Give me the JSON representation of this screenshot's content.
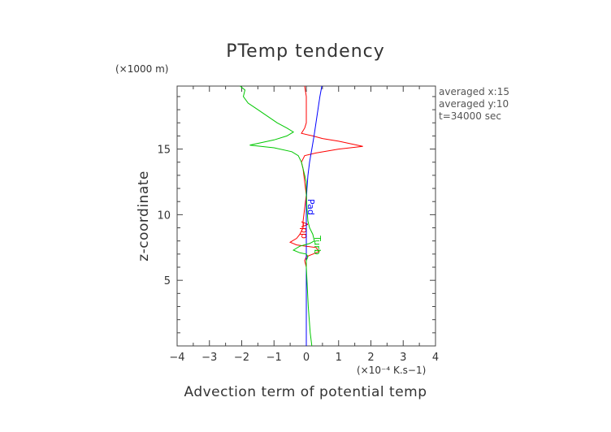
{
  "chart_data": {
    "type": "line",
    "title": "PTemp tendency",
    "xlabel": "Advection term of potential temp",
    "ylabel": "z-coordinate",
    "x_unit": "(×10⁻⁴ K.s−1)",
    "y_unit": "(×1000 m)",
    "xlim": [
      -4,
      4
    ],
    "ylim": [
      0,
      19.8
    ],
    "x_ticks": [
      -4,
      -3,
      -2,
      -1,
      0,
      1,
      2,
      3,
      4
    ],
    "x_tick_labels": [
      "−4",
      "−3",
      "−2",
      "−1",
      "0",
      "1",
      "2",
      "3",
      "4"
    ],
    "y_ticks": [
      5,
      10,
      15
    ],
    "y_tick_labels": [
      "5",
      "10",
      "15"
    ],
    "info_lines": [
      "averaged  x:15",
      "averaged  y:10",
      "t=34000 sec"
    ],
    "colors": {
      "App": "#ff0000",
      "Pad": "#0000ff",
      "Turb": "#00c800",
      "frame": "#444444"
    },
    "series": [
      {
        "name": "App",
        "color": "#ff0000",
        "label": "App",
        "label_at": [
          -0.15,
          9.5
        ],
        "points": [
          [
            -0.05,
            19.8
          ],
          [
            0,
            19.0
          ],
          [
            0,
            18.0
          ],
          [
            0,
            17.0
          ],
          [
            -0.05,
            16.6
          ],
          [
            -0.15,
            16.2
          ],
          [
            0.2,
            16.0
          ],
          [
            0.5,
            15.8
          ],
          [
            1.0,
            15.6
          ],
          [
            1.75,
            15.2
          ],
          [
            1.0,
            15.0
          ],
          [
            0.3,
            14.7
          ],
          [
            -0.05,
            14.5
          ],
          [
            -0.15,
            14.0
          ],
          [
            -0.1,
            13.5
          ],
          [
            -0.05,
            12.5
          ],
          [
            0,
            11.5
          ],
          [
            -0.05,
            10.5
          ],
          [
            -0.1,
            9.5
          ],
          [
            -0.1,
            9.0
          ],
          [
            -0.2,
            8.5
          ],
          [
            -0.3,
            8.2
          ],
          [
            -0.5,
            7.9
          ],
          [
            -0.3,
            7.7
          ],
          [
            0,
            7.6
          ],
          [
            0.3,
            7.5
          ],
          [
            0.4,
            7.2
          ],
          [
            0.2,
            7.0
          ],
          [
            0,
            6.8
          ],
          [
            -0.05,
            6.5
          ],
          [
            0,
            6.0
          ],
          [
            0,
            5.0
          ],
          [
            0,
            4.0
          ],
          [
            0,
            3.0
          ],
          [
            0,
            2.0
          ],
          [
            0,
            1.0
          ],
          [
            0,
            0
          ]
        ]
      },
      {
        "name": "Pad",
        "color": "#0000ff",
        "label": "Pad",
        "label_at": [
          0.05,
          11.2
        ],
        "points": [
          [
            0.48,
            19.8
          ],
          [
            0.42,
            19.0
          ],
          [
            0.36,
            18.0
          ],
          [
            0.3,
            17.0
          ],
          [
            0.24,
            16.0
          ],
          [
            0.17,
            15.0
          ],
          [
            0.1,
            14.0
          ],
          [
            0.05,
            13.0
          ],
          [
            0.02,
            12.0
          ],
          [
            0,
            11.0
          ],
          [
            0,
            10.0
          ],
          [
            0,
            9.0
          ],
          [
            0,
            8.0
          ],
          [
            0,
            7.0
          ],
          [
            0,
            6.0
          ],
          [
            0,
            5.0
          ],
          [
            0,
            4.0
          ],
          [
            0,
            3.0
          ],
          [
            0,
            2.0
          ],
          [
            0,
            1.0
          ],
          [
            0,
            0
          ]
        ]
      },
      {
        "name": "Turb",
        "color": "#00c800",
        "label": "Turb",
        "label_at": [
          0.25,
          8.4
        ],
        "points": [
          [
            -2.05,
            19.8
          ],
          [
            -1.9,
            19.5
          ],
          [
            -1.95,
            19.0
          ],
          [
            -1.8,
            18.5
          ],
          [
            -1.5,
            18.0
          ],
          [
            -1.2,
            17.5
          ],
          [
            -0.9,
            17.0
          ],
          [
            -0.6,
            16.6
          ],
          [
            -0.4,
            16.3
          ],
          [
            -0.6,
            16.0
          ],
          [
            -1.0,
            15.7
          ],
          [
            -1.75,
            15.3
          ],
          [
            -1.0,
            15.1
          ],
          [
            -0.45,
            14.8
          ],
          [
            -0.25,
            14.5
          ],
          [
            -0.15,
            14.0
          ],
          [
            -0.1,
            13.5
          ],
          [
            -0.05,
            13.0
          ],
          [
            0,
            12.5
          ],
          [
            0,
            11.5
          ],
          [
            0.02,
            10.5
          ],
          [
            0.05,
            9.5
          ],
          [
            0.1,
            9.0
          ],
          [
            0.2,
            8.5
          ],
          [
            0.25,
            8.0
          ],
          [
            0.1,
            7.8
          ],
          [
            -0.2,
            7.6
          ],
          [
            -0.4,
            7.3
          ],
          [
            -0.2,
            7.1
          ],
          [
            0,
            7.0
          ],
          [
            0.05,
            6.8
          ],
          [
            0,
            6.5
          ],
          [
            0,
            6.0
          ],
          [
            0.02,
            5.0
          ],
          [
            0.04,
            4.0
          ],
          [
            0.06,
            3.0
          ],
          [
            0.09,
            2.0
          ],
          [
            0.12,
            1.0
          ],
          [
            0.17,
            0
          ]
        ]
      }
    ]
  }
}
